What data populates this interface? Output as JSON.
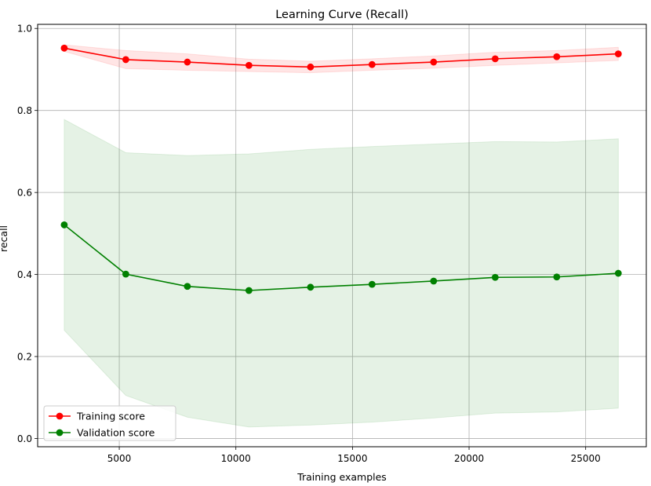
{
  "chart_data": {
    "type": "line",
    "title": "Learning Curve (Recall)",
    "xlabel": "Training examples",
    "ylabel": "recall",
    "xlim": [
      1500,
      27600
    ],
    "ylim": [
      -0.02,
      1.01
    ],
    "grid": true,
    "legend_position": "lower-left",
    "x_ticks": [
      5000,
      10000,
      15000,
      20000,
      25000
    ],
    "y_ticks": [
      0.0,
      0.2,
      0.4,
      0.6,
      0.8,
      1.0
    ],
    "x": [
      2640,
      5280,
      7920,
      10560,
      13200,
      15840,
      18480,
      21120,
      23760,
      26400
    ],
    "series": [
      {
        "name": "Training score",
        "color": "#ff0000",
        "values": [
          0.952,
          0.924,
          0.918,
          0.91,
          0.906,
          0.912,
          0.918,
          0.926,
          0.931,
          0.938
        ],
        "lower": [
          0.944,
          0.902,
          0.898,
          0.895,
          0.892,
          0.898,
          0.903,
          0.91,
          0.916,
          0.922
        ],
        "upper": [
          0.96,
          0.946,
          0.938,
          0.925,
          0.92,
          0.926,
          0.933,
          0.942,
          0.946,
          0.954
        ]
      },
      {
        "name": "Validation score",
        "color": "#008000",
        "values": [
          0.521,
          0.401,
          0.371,
          0.361,
          0.369,
          0.376,
          0.384,
          0.393,
          0.394,
          0.403
        ],
        "lower": [
          0.264,
          0.105,
          0.052,
          0.028,
          0.033,
          0.04,
          0.05,
          0.062,
          0.065,
          0.074
        ],
        "upper": [
          0.778,
          0.697,
          0.69,
          0.694,
          0.705,
          0.712,
          0.718,
          0.724,
          0.723,
          0.731
        ]
      }
    ]
  }
}
